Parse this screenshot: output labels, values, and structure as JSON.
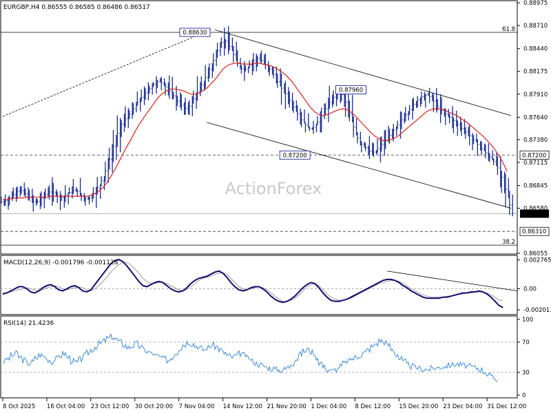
{
  "chart_header": "EURGBP,H4  0.86555 0.86585 0.86486 0.86517",
  "watermark": "ActionForex",
  "colors": {
    "bar": "#1a2a8c",
    "ma": "#e0201b",
    "macd": "#0d0d6e",
    "signal": "#9a9a9a",
    "rsi": "#2a7fd4",
    "dashed": "#333333",
    "price_box": "#1a2a8c"
  },
  "chart_data": [
    {
      "type": "candlestick",
      "name": "main",
      "title": "EURGBP,H4  0.86555 0.86585 0.86486 0.86517",
      "y_ticks": [
        "0.88975",
        "0.88710",
        "0.88440",
        "0.88175",
        "0.87910",
        "0.87640",
        "0.87380",
        "0.87115",
        "0.86845",
        "0.86580",
        "0.86055"
      ],
      "y_tick_values": [
        0.88975,
        0.8871,
        0.8844,
        0.88175,
        0.8791,
        0.8764,
        0.8738,
        0.87115,
        0.86845,
        0.8658,
        0.86055
      ],
      "ylim": [
        0.86055,
        0.88975
      ],
      "last_price": "0.86517",
      "levels": [
        {
          "label": "0.87200",
          "value": 0.872
        },
        {
          "label": "0.86310",
          "value": 0.8631
        }
      ],
      "fib": [
        {
          "label": "61.8",
          "value": 0.8863
        },
        {
          "label": "38.2",
          "value": 0.8615
        }
      ],
      "annotations": [
        {
          "label": "0.88630",
          "value": 0.8863
        },
        {
          "label": "0.87960",
          "value": 0.8796
        },
        {
          "label": "0.87200",
          "value": 0.872
        }
      ],
      "x_ticks": [
        "8 Oct 2025",
        "16 Oct 04:00",
        "23 Oct 12:00",
        "30 Oct 20:00",
        "7 Nov 04:00",
        "14 Nov 12:00",
        "21 Nov 20:00",
        "1 Dec 04:00",
        "8 Dec 12:00",
        "15 Dec 20:00",
        "23 Dec 04:00",
        "31 Dec 12:00"
      ],
      "x_tick_positions": [
        0,
        11,
        22,
        33,
        44,
        55,
        66,
        77,
        88,
        99,
        110,
        121
      ],
      "close_series": [
        0.8665,
        0.8668,
        0.8672,
        0.8676,
        0.868,
        0.8677,
        0.8673,
        0.8668,
        0.8664,
        0.8668,
        0.8672,
        0.8676,
        0.8678,
        0.8674,
        0.867,
        0.8672,
        0.8675,
        0.8678,
        0.868,
        0.8675,
        0.867,
        0.8668,
        0.8672,
        0.8678,
        0.8685,
        0.8695,
        0.8708,
        0.8722,
        0.8738,
        0.8752,
        0.876,
        0.8765,
        0.877,
        0.8778,
        0.8785,
        0.879,
        0.8795,
        0.88,
        0.8805,
        0.8806,
        0.8802,
        0.8797,
        0.8792,
        0.8786,
        0.878,
        0.8776,
        0.8773,
        0.8781,
        0.879,
        0.8798,
        0.8806,
        0.8815,
        0.8825,
        0.8836,
        0.8848,
        0.8855,
        0.8851,
        0.8842,
        0.8832,
        0.8823,
        0.8818,
        0.8822,
        0.8828,
        0.8833,
        0.8832,
        0.8828,
        0.8823,
        0.8818,
        0.881,
        0.8801,
        0.8795,
        0.8788,
        0.878,
        0.8772,
        0.8764,
        0.8758,
        0.8752,
        0.875,
        0.8755,
        0.8762,
        0.877,
        0.8778,
        0.8785,
        0.879,
        0.8793,
        0.8788,
        0.8775,
        0.876,
        0.8745,
        0.8735,
        0.873,
        0.8727,
        0.8722,
        0.8725,
        0.873,
        0.8735,
        0.874,
        0.8746,
        0.8752,
        0.8758,
        0.8764,
        0.877,
        0.8776,
        0.8782,
        0.8786,
        0.879,
        0.879,
        0.8786,
        0.878,
        0.8774,
        0.877,
        0.8766,
        0.8762,
        0.8758,
        0.8753,
        0.8749,
        0.8745,
        0.874,
        0.8735,
        0.873,
        0.8725,
        0.872,
        0.8715,
        0.871,
        0.87,
        0.8688,
        0.8672,
        0.8652
      ],
      "ma_series": [
        0.8668,
        0.8668,
        0.8669,
        0.867,
        0.867,
        0.867,
        0.8671,
        0.8671,
        0.8671,
        0.8671,
        0.8671,
        0.8671,
        0.8672,
        0.8672,
        0.8672,
        0.8672,
        0.8672,
        0.8672,
        0.8672,
        0.8672,
        0.8672,
        0.8672,
        0.8673,
        0.8675,
        0.8678,
        0.8682,
        0.8688,
        0.8695,
        0.8703,
        0.8712,
        0.8721,
        0.873,
        0.8738,
        0.8747,
        0.8755,
        0.8762,
        0.8769,
        0.8775,
        0.8782,
        0.8788,
        0.8792,
        0.8795,
        0.8797,
        0.8797,
        0.8796,
        0.8795,
        0.8793,
        0.8791,
        0.8791,
        0.8792,
        0.8795,
        0.8798,
        0.8803,
        0.8808,
        0.8814,
        0.882,
        0.8824,
        0.8826,
        0.8827,
        0.8827,
        0.8826,
        0.8826,
        0.8826,
        0.8827,
        0.8827,
        0.8826,
        0.8825,
        0.8824,
        0.8822,
        0.8819,
        0.8816,
        0.8812,
        0.8807,
        0.8801,
        0.8794,
        0.8788,
        0.8781,
        0.8775,
        0.877,
        0.8767,
        0.8766,
        0.8767,
        0.8769,
        0.8771,
        0.8773,
        0.8774,
        0.8773,
        0.877,
        0.8766,
        0.8761,
        0.8756,
        0.8751,
        0.8746,
        0.8742,
        0.8739,
        0.8737,
        0.8737,
        0.8738,
        0.874,
        0.8743,
        0.8747,
        0.8751,
        0.8755,
        0.8759,
        0.8763,
        0.8767,
        0.8771,
        0.8773,
        0.8774,
        0.8774,
        0.8773,
        0.8771,
        0.8769,
        0.8767,
        0.8764,
        0.8761,
        0.8758,
        0.8754,
        0.875,
        0.8746,
        0.8742,
        0.8737,
        0.8732,
        0.8726,
        0.8719,
        0.8711,
        0.8701
      ]
    },
    {
      "type": "line",
      "name": "macd",
      "title": "MACD(12,26,9) -0.001796 -0.001128",
      "y_ticks": [
        "0.002765",
        "0.00",
        "-0.002013"
      ],
      "y_tick_values": [
        0.002765,
        0.0,
        -0.002013
      ],
      "ylim": [
        -0.0024,
        0.003
      ],
      "series": [
        {
          "values": [
            -0.0005,
            -0.0004,
            -0.0002,
            0.0,
            0.0002,
            0.0002,
            0.0,
            -0.0003,
            -0.0004,
            -0.0002,
            0.0001,
            0.0003,
            0.0004,
            0.0002,
            -0.0001,
            -0.0002,
            0.0,
            0.0002,
            0.0003,
            0.0001,
            -0.0002,
            -0.0003,
            -0.0001,
            0.0004,
            0.0009,
            0.0014,
            0.0019,
            0.0024,
            0.0027,
            0.0028,
            0.0026,
            0.0022,
            0.0017,
            0.0012,
            0.0007,
            0.0003,
            0.0002,
            0.0004,
            0.0006,
            0.0007,
            0.0006,
            0.0003,
            0.0,
            -0.0002,
            -0.0003,
            -0.0002,
            0.0001,
            0.0005,
            0.0008,
            0.001,
            0.0011,
            0.0012,
            0.0014,
            0.0016,
            0.0017,
            0.0015,
            0.0011,
            0.0006,
            0.0002,
            -0.0001,
            -0.0002,
            -0.0001,
            0.0001,
            0.0002,
            0.0002,
            0.0,
            -0.0003,
            -0.0007,
            -0.001,
            -0.0012,
            -0.0013,
            -0.0012,
            -0.001,
            -0.0007,
            -0.0003,
            0.0001,
            0.0004,
            0.0006,
            0.0005,
            0.0001,
            -0.0004,
            -0.0008,
            -0.0011,
            -0.0012,
            -0.0012,
            -0.0011,
            -0.001,
            -0.0008,
            -0.0006,
            -0.0004,
            -0.0002,
            0.0,
            0.0002,
            0.0004,
            0.0006,
            0.0008,
            0.0009,
            0.0009,
            0.0008,
            0.0006,
            0.0003,
            0.0001,
            -0.0002,
            -0.0004,
            -0.0006,
            -0.0008,
            -0.0009,
            -0.0009,
            -0.0009,
            -0.0009,
            -0.0008,
            -0.0008,
            -0.0007,
            -0.0006,
            -0.0005,
            -0.0004,
            -0.0004,
            -0.0003,
            -0.0003,
            -0.0002,
            -0.0003,
            -0.0005,
            -0.0008,
            -0.0012,
            -0.0016,
            -0.0018
          ]
        },
        {
          "values": [
            -0.0004,
            -0.0004,
            -0.0003,
            -0.0002,
            -0.0001,
            0.0,
            0.0001,
            0.0,
            -0.0001,
            -0.0002,
            -0.0001,
            0.0001,
            0.0002,
            0.0003,
            0.0002,
            0.0,
            -0.0001,
            0.0,
            0.0001,
            0.0002,
            0.0001,
            -0.0001,
            -0.0002,
            0.0,
            0.0003,
            0.0007,
            0.0011,
            0.0016,
            0.002,
            0.0023,
            0.0025,
            0.0025,
            0.0023,
            0.0019,
            0.0015,
            0.001,
            0.0007,
            0.0005,
            0.0005,
            0.0006,
            0.0006,
            0.0005,
            0.0003,
            0.0001,
            -0.0001,
            -0.0002,
            -0.0001,
            0.0002,
            0.0005,
            0.0008,
            0.001,
            0.0011,
            0.0012,
            0.0014,
            0.0015,
            0.0015,
            0.0014,
            0.001,
            0.0006,
            0.0002,
            0.0,
            -0.0001,
            0.0,
            0.0001,
            0.0002,
            0.0001,
            -0.0001,
            -0.0004,
            -0.0007,
            -0.001,
            -0.0012,
            -0.0012,
            -0.0011,
            -0.0009,
            -0.0006,
            -0.0002,
            0.0002,
            0.0004,
            0.0005,
            0.0003,
            -0.0001,
            -0.0005,
            -0.0008,
            -0.001,
            -0.0011,
            -0.0011,
            -0.001,
            -0.0009,
            -0.0007,
            -0.0005,
            -0.0003,
            -0.0001,
            0.0001,
            0.0003,
            0.0005,
            0.0006,
            0.0007,
            0.0008,
            0.0008,
            0.0007,
            0.0005,
            0.0003,
            0.0,
            -0.0002,
            -0.0004,
            -0.0006,
            -0.0007,
            -0.0008,
            -0.0008,
            -0.0008,
            -0.0008,
            -0.0007,
            -0.0007,
            -0.0006,
            -0.0005,
            -0.0005,
            -0.0004,
            -0.0004,
            -0.0003,
            -0.0003,
            -0.0003,
            -0.0004,
            -0.0006,
            -0.0008,
            -0.0011,
            -0.0011
          ]
        }
      ]
    },
    {
      "type": "line",
      "name": "rsi",
      "title": "RSI(14) 21.4236",
      "y_ticks": [
        "100",
        "70",
        "30",
        "0"
      ],
      "y_tick_values": [
        100,
        70,
        30,
        0
      ],
      "ylim": [
        0,
        100
      ],
      "series": [
        {
          "values": [
            45,
            48,
            52,
            55,
            50,
            46,
            42,
            44,
            49,
            53,
            51,
            47,
            44,
            48,
            52,
            55,
            50,
            45,
            43,
            47,
            52,
            56,
            60,
            64,
            68,
            72,
            75,
            77,
            74,
            70,
            66,
            63,
            65,
            68,
            64,
            60,
            57,
            55,
            52,
            50,
            48,
            46,
            50,
            56,
            62,
            67,
            70,
            68,
            65,
            62,
            60,
            63,
            66,
            64,
            60,
            56,
            52,
            50,
            52,
            55,
            53,
            49,
            45,
            42,
            40,
            38,
            36,
            35,
            34,
            33,
            34,
            37,
            42,
            48,
            54,
            58,
            60,
            57,
            50,
            43,
            37,
            33,
            32,
            34,
            38,
            42,
            45,
            48,
            50,
            53,
            56,
            60,
            64,
            68,
            72,
            70,
            66,
            60,
            54,
            48,
            44,
            40,
            38,
            36,
            35,
            34,
            34,
            35,
            36,
            37,
            38,
            39,
            40,
            41,
            40,
            39,
            38,
            37,
            36,
            34,
            31,
            27,
            23,
            21
          ]
        }
      ]
    }
  ]
}
